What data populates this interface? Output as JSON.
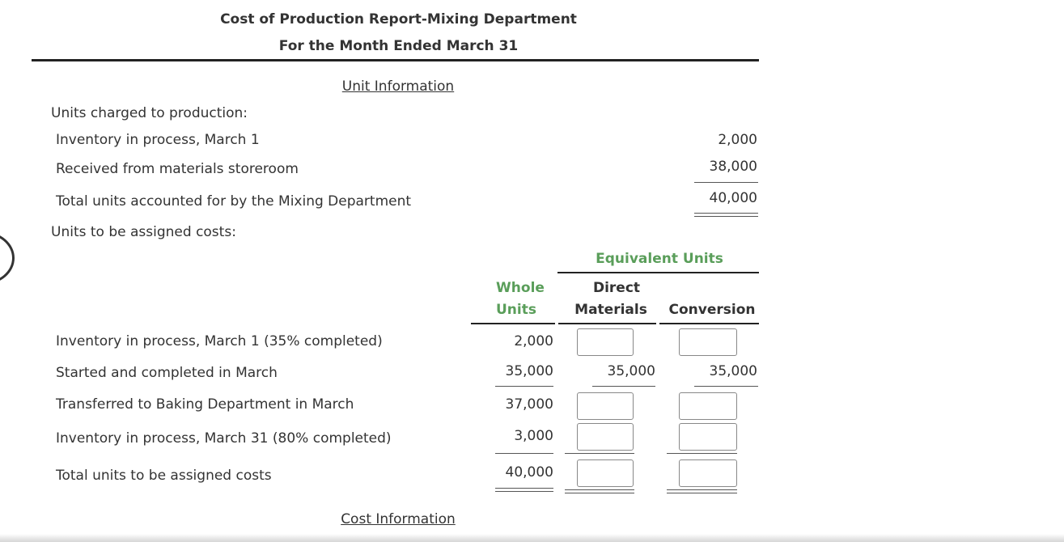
{
  "header": {
    "title": "Cost of Production Report-Mixing Department",
    "subtitle": "For the Month Ended March 31"
  },
  "unit_info": {
    "heading": "Unit Information",
    "charged_label": "Units charged to production:",
    "rows": [
      {
        "label": "Inventory in process, March 1",
        "value": "2,000"
      },
      {
        "label": "Received from materials storeroom",
        "value": "38,000"
      },
      {
        "label": "Total units accounted for by the Mixing Department",
        "value": "40,000"
      }
    ],
    "assigned_label": "Units to be assigned costs:"
  },
  "equivalent": {
    "group_header": "Equivalent Units",
    "col_whole_1": "Whole",
    "col_whole_2": "Units",
    "col_dm_1": "Direct",
    "col_dm_2": "Materials",
    "col_conv": "Conversion",
    "rows": [
      {
        "label": "Inventory in process, March 1 (35% completed)",
        "whole": "2,000",
        "dm": "",
        "conv": ""
      },
      {
        "label": "Started and completed in March",
        "whole": "35,000",
        "dm": "35,000",
        "conv": "35,000"
      },
      {
        "label": "Transferred to Baking Department in March",
        "whole": "37,000",
        "dm": "",
        "conv": ""
      },
      {
        "label": "Inventory in process, March 31 (80% completed)",
        "whole": "3,000",
        "dm": "",
        "conv": ""
      },
      {
        "label": "Total units to be assigned costs",
        "whole": "40,000",
        "dm": "",
        "conv": ""
      }
    ]
  },
  "cost_info": {
    "heading": "Cost Information"
  }
}
